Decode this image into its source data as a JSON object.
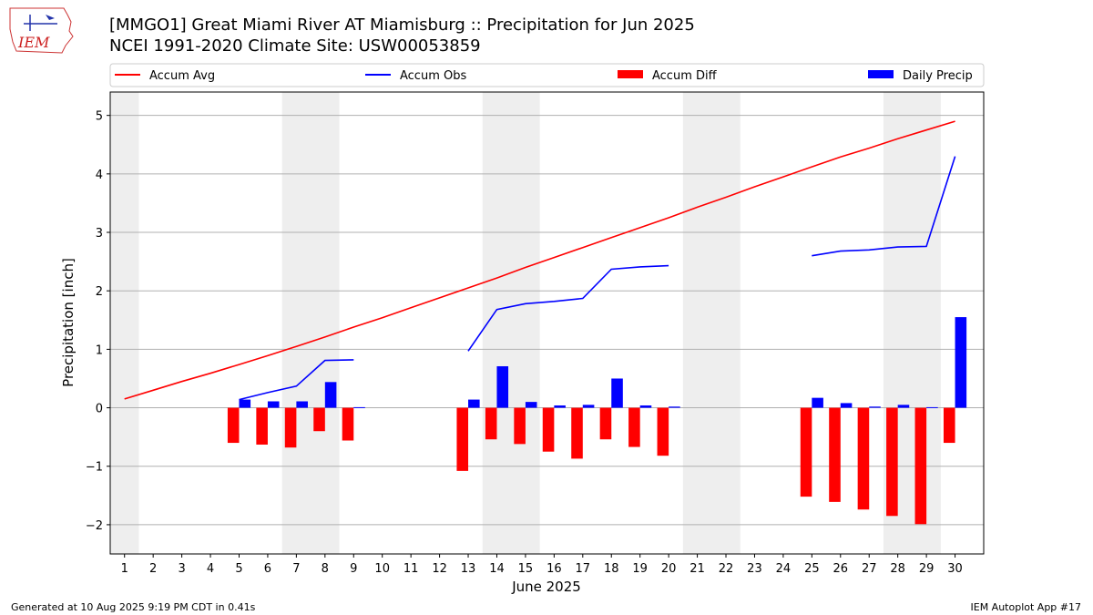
{
  "header": {
    "title_line1": "[MMGO1] Great Miami River  AT Miamisburg :: Precipitation for Jun 2025",
    "title_line2": "NCEI 1991-2020 Climate Site: USW00053859",
    "logo_text": "IEM"
  },
  "footer": {
    "generated": "Generated at 10 Aug 2025 9:19 PM CDT in 0.41s",
    "app": "IEM Autoplot App #17"
  },
  "colors": {
    "accum_avg": "#ff0000",
    "accum_obs": "#0000ff",
    "accum_diff": "#ff0000",
    "daily_precip": "#0000ff",
    "weekend_shade": "#eeeeee",
    "grid": "#b0b0b0"
  },
  "chart_data": {
    "type": "bar",
    "xlabel": "June 2025",
    "ylabel": "Precipitation [inch]",
    "ylim": [
      -2.5,
      5.4
    ],
    "xlim": [
      0.5,
      31
    ],
    "yticks": [
      -2,
      -1,
      0,
      1,
      2,
      3,
      4,
      5
    ],
    "ytick_labels": [
      "−2",
      "−1",
      "0",
      "1",
      "2",
      "3",
      "4",
      "5"
    ],
    "categories": [
      "1",
      "2",
      "3",
      "4",
      "5",
      "6",
      "7",
      "8",
      "9",
      "10",
      "11",
      "12",
      "13",
      "14",
      "15",
      "16",
      "17",
      "18",
      "19",
      "20",
      "21",
      "22",
      "23",
      "24",
      "25",
      "26",
      "27",
      "28",
      "29",
      "30"
    ],
    "x": [
      1,
      2,
      3,
      4,
      5,
      6,
      7,
      8,
      9,
      10,
      11,
      12,
      13,
      14,
      15,
      16,
      17,
      18,
      19,
      20,
      21,
      22,
      23,
      24,
      25,
      26,
      27,
      28,
      29,
      30
    ],
    "grid": "horizontal",
    "legend_position": "top",
    "shaded_days": [
      [
        0.5,
        1.5
      ],
      [
        6.5,
        8.5
      ],
      [
        13.5,
        15.5
      ],
      [
        20.5,
        22.5
      ],
      [
        27.5,
        29.5
      ]
    ],
    "series": [
      {
        "name": "Accum Avg",
        "kind": "line",
        "values": [
          0.15,
          0.3,
          0.45,
          0.59,
          0.74,
          0.89,
          1.05,
          1.21,
          1.38,
          1.54,
          1.71,
          1.88,
          2.05,
          2.22,
          2.4,
          2.57,
          2.74,
          2.91,
          3.08,
          3.25,
          3.43,
          3.6,
          3.78,
          3.95,
          4.12,
          4.29,
          4.44,
          4.6,
          4.75,
          4.9
        ]
      },
      {
        "name": "Accum Obs",
        "kind": "line",
        "values": [
          null,
          null,
          null,
          null,
          0.14,
          0.26,
          0.37,
          0.81,
          0.82,
          null,
          null,
          null,
          0.97,
          1.68,
          1.78,
          1.82,
          1.87,
          2.37,
          2.41,
          2.43,
          null,
          null,
          null,
          null,
          2.6,
          2.68,
          2.7,
          2.75,
          2.76,
          4.3
        ]
      },
      {
        "name": "Accum Diff",
        "kind": "bar",
        "values": [
          null,
          null,
          null,
          null,
          -0.6,
          -0.63,
          -0.68,
          -0.4,
          -0.56,
          null,
          null,
          null,
          -1.08,
          -0.54,
          -0.62,
          -0.75,
          -0.87,
          -0.54,
          -0.67,
          -0.82,
          null,
          null,
          null,
          null,
          -1.52,
          -1.61,
          -1.74,
          -1.85,
          -1.99,
          -0.6
        ]
      },
      {
        "name": "Daily Precip",
        "kind": "bar",
        "values": [
          null,
          null,
          null,
          null,
          0.14,
          0.11,
          0.11,
          0.44,
          0.01,
          null,
          null,
          null,
          0.14,
          0.71,
          0.1,
          0.04,
          0.05,
          0.5,
          0.04,
          0.02,
          null,
          null,
          null,
          null,
          0.17,
          0.08,
          0.02,
          0.05,
          0.01,
          1.55
        ]
      }
    ]
  }
}
